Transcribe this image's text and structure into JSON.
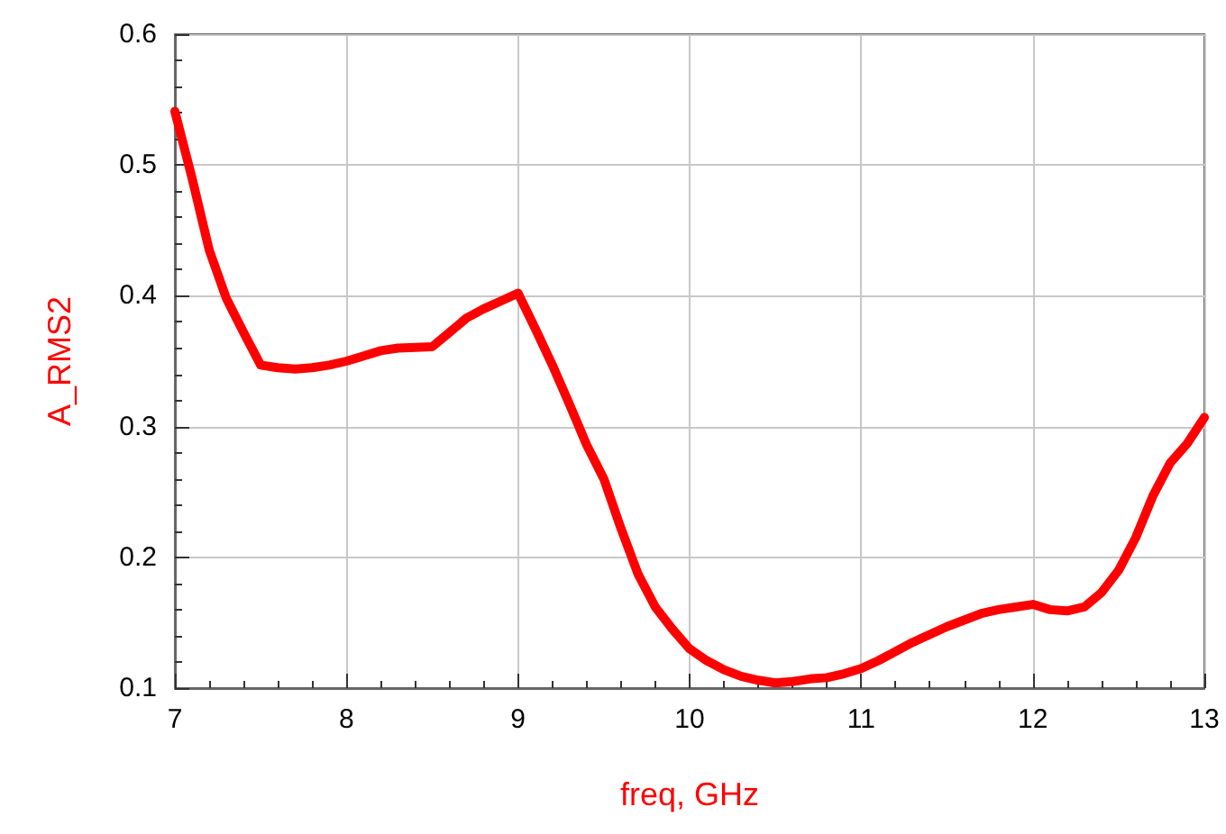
{
  "chart_data": {
    "type": "line",
    "xlabel": "freq, GHz",
    "ylabel": "A_RMS2",
    "x": [
      7.0,
      7.1,
      7.2,
      7.3,
      7.4,
      7.5,
      7.6,
      7.7,
      7.8,
      7.9,
      8.0,
      8.1,
      8.2,
      8.3,
      8.5,
      8.6,
      8.7,
      8.8,
      8.9,
      9.0,
      9.1,
      9.2,
      9.3,
      9.4,
      9.5,
      9.6,
      9.7,
      9.8,
      9.9,
      10.0,
      10.1,
      10.2,
      10.3,
      10.4,
      10.5,
      10.6,
      10.7,
      10.8,
      10.9,
      11.0,
      11.1,
      11.2,
      11.3,
      11.4,
      11.5,
      11.6,
      11.7,
      11.8,
      11.9,
      12.0,
      12.1,
      12.2,
      12.3,
      12.4,
      12.5,
      12.6,
      12.7,
      12.8,
      12.9,
      13.0
    ],
    "series": [
      {
        "color": "#ff0000",
        "values": [
          0.541,
          0.49,
          0.435,
          0.398,
          0.372,
          0.347,
          0.345,
          0.344,
          0.345,
          0.347,
          0.35,
          0.354,
          0.358,
          0.36,
          0.361,
          0.372,
          0.383,
          0.39,
          0.396,
          0.402,
          0.375,
          0.347,
          0.317,
          0.286,
          0.26,
          0.222,
          0.187,
          0.162,
          0.145,
          0.13,
          0.121,
          0.114,
          0.109,
          0.106,
          0.104,
          0.105,
          0.107,
          0.108,
          0.111,
          0.115,
          0.121,
          0.128,
          0.135,
          0.141,
          0.147,
          0.152,
          0.157,
          0.16,
          0.162,
          0.164,
          0.16,
          0.159,
          0.162,
          0.173,
          0.19,
          0.215,
          0.247,
          0.272,
          0.287,
          0.307
        ]
      }
    ],
    "xlim": [
      7,
      13
    ],
    "xticks": [
      7,
      8,
      9,
      10,
      11,
      12,
      13
    ],
    "ylim": [
      0.1,
      0.6
    ],
    "yticks": [
      0.1,
      0.2,
      0.3,
      0.4,
      0.5,
      0.6
    ],
    "grid": true,
    "marker": "none",
    "line_style": "solid"
  }
}
